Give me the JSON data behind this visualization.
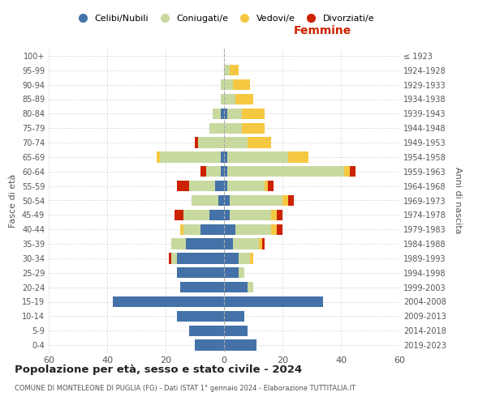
{
  "age_groups": [
    "0-4",
    "5-9",
    "10-14",
    "15-19",
    "20-24",
    "25-29",
    "30-34",
    "35-39",
    "40-44",
    "45-49",
    "50-54",
    "55-59",
    "60-64",
    "65-69",
    "70-74",
    "75-79",
    "80-84",
    "85-89",
    "90-94",
    "95-99",
    "100+"
  ],
  "birth_years": [
    "2019-2023",
    "2014-2018",
    "2009-2013",
    "2004-2008",
    "1999-2003",
    "1994-1998",
    "1989-1993",
    "1984-1988",
    "1979-1983",
    "1974-1978",
    "1969-1973",
    "1964-1968",
    "1959-1963",
    "1954-1958",
    "1949-1953",
    "1944-1948",
    "1939-1943",
    "1934-1938",
    "1929-1933",
    "1924-1928",
    "≤ 1923"
  ],
  "males": {
    "celibi": [
      10,
      12,
      16,
      38,
      15,
      16,
      16,
      13,
      8,
      5,
      2,
      3,
      1,
      1,
      0,
      0,
      1,
      0,
      0,
      0,
      0
    ],
    "coniugati": [
      0,
      0,
      0,
      0,
      0,
      0,
      2,
      5,
      6,
      9,
      9,
      9,
      5,
      21,
      9,
      5,
      3,
      1,
      1,
      0,
      0
    ],
    "vedovi": [
      0,
      0,
      0,
      0,
      0,
      0,
      0,
      0,
      1,
      0,
      0,
      0,
      0,
      1,
      0,
      0,
      0,
      0,
      0,
      0,
      0
    ],
    "divorziati": [
      0,
      0,
      0,
      0,
      0,
      0,
      1,
      0,
      0,
      3,
      0,
      4,
      2,
      0,
      1,
      0,
      0,
      0,
      0,
      0,
      0
    ]
  },
  "females": {
    "nubili": [
      11,
      8,
      7,
      34,
      8,
      5,
      5,
      3,
      4,
      2,
      2,
      1,
      1,
      1,
      0,
      0,
      1,
      0,
      0,
      0,
      0
    ],
    "coniugate": [
      0,
      0,
      0,
      0,
      2,
      2,
      4,
      9,
      12,
      14,
      18,
      13,
      40,
      21,
      8,
      6,
      5,
      4,
      3,
      2,
      0
    ],
    "vedove": [
      0,
      0,
      0,
      0,
      0,
      0,
      1,
      1,
      2,
      2,
      2,
      1,
      2,
      7,
      8,
      8,
      8,
      6,
      6,
      3,
      0
    ],
    "divorziate": [
      0,
      0,
      0,
      0,
      0,
      0,
      0,
      1,
      2,
      2,
      2,
      2,
      2,
      0,
      0,
      0,
      0,
      0,
      0,
      0,
      0
    ]
  },
  "colors": {
    "celibi": "#4472a8",
    "coniugati": "#c8d9a0",
    "vedovi": "#f5c842",
    "divorziati": "#cc2200"
  },
  "xlim": 60,
  "title": "Popolazione per età, sesso e stato civile - 2024",
  "subtitle": "COMUNE DI MONTELEONE DI PUGLIA (FG) - Dati ISTAT 1° gennaio 2024 - Elaborazione TUTTITALIA.IT",
  "xlabel_right": "Femmine",
  "ylabel_left": "Fasce di età",
  "ylabel_right": "Anni di nascita",
  "legend_labels": [
    "Celibi/Nubili",
    "Coniugati/e",
    "Vedovi/e",
    "Divorziati/e"
  ],
  "bg_color": "#ffffff",
  "grid_color": "#cccccc"
}
